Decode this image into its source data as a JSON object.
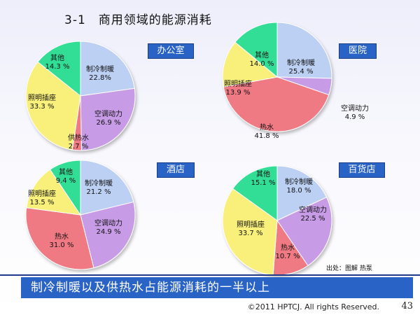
{
  "slide": {
    "number": "3-1",
    "title": "商用领域的能源消耗",
    "banner": "制冷制暖以及供热水占能源消耗的一半以上",
    "copyright": "©2011 HPTCJ. All rights Reserved.",
    "page": "43",
    "source": "出处：图解 热泵"
  },
  "colors": {
    "cooling": "#bcd0f4",
    "ac": "#c79be6",
    "hotwater": "#f07a84",
    "lighting": "#f8f07a",
    "other": "#33dd96",
    "supplyheat": "#f07a84"
  },
  "chart_data": [
    {
      "type": "pie",
      "title": "办公室",
      "slices": [
        {
          "name": "制冷制暖",
          "value": 22.8,
          "label": "22.8%"
        },
        {
          "name": "空调动力",
          "value": 26.9,
          "label": "26.9 %"
        },
        {
          "name": "供热水",
          "value": 2.7,
          "label": "2.7 %"
        },
        {
          "name": "照明插座",
          "value": 33.3,
          "label": "33.3 %"
        },
        {
          "name": "其他",
          "value": 14.3,
          "label": "14.3 %"
        }
      ]
    },
    {
      "type": "pie",
      "title": "医院",
      "slices": [
        {
          "name": "制冷制暖",
          "value": 25.4,
          "label": "25.4 %"
        },
        {
          "name": "空调动力",
          "value": 4.9,
          "label": "4.9 %"
        },
        {
          "name": "热水",
          "value": 41.8,
          "label": "41.8 %"
        },
        {
          "name": "照明插座",
          "value": 13.9,
          "label": "13.9 %"
        },
        {
          "name": "其他",
          "value": 14.0,
          "label": "14.0 %"
        }
      ]
    },
    {
      "type": "pie",
      "title": "酒店",
      "slices": [
        {
          "name": "制冷制暖",
          "value": 21.2,
          "label": "21.2 %"
        },
        {
          "name": "空调动力",
          "value": 24.9,
          "label": "24.9 %"
        },
        {
          "name": "热水",
          "value": 31.0,
          "label": "31.0 %"
        },
        {
          "name": "照明插座",
          "value": 13.5,
          "label": "13.5 %"
        },
        {
          "name": "其他",
          "value": 9.4,
          "label": "9.4 %"
        }
      ]
    },
    {
      "type": "pie",
      "title": "百货店",
      "slices": [
        {
          "name": "制冷制暖",
          "value": 18.0,
          "label": "18.0 %"
        },
        {
          "name": "空调动力",
          "value": 22.5,
          "label": "22.5 %"
        },
        {
          "name": "热水",
          "value": 10.7,
          "label": "10.7 %"
        },
        {
          "name": "照明插座",
          "value": 33.7,
          "label": "33.7 %"
        },
        {
          "name": "其他",
          "value": 15.1,
          "label": "15.1 %"
        }
      ]
    }
  ]
}
